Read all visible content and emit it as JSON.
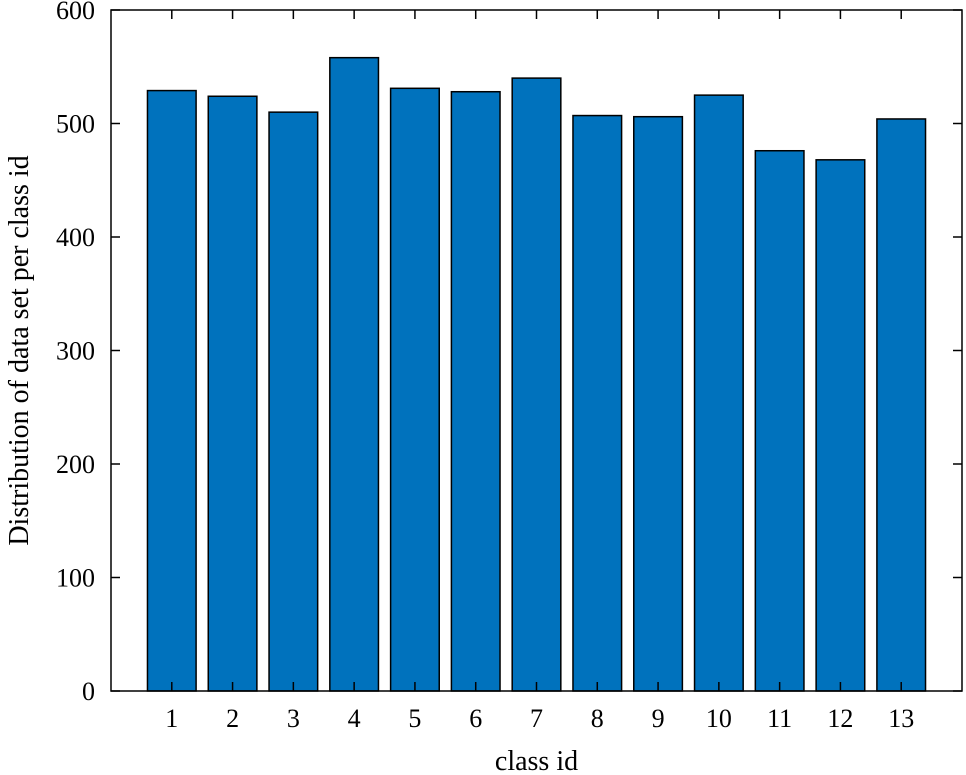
{
  "chart_data": {
    "type": "bar",
    "title": "",
    "xlabel": "class id",
    "ylabel": "Distribution of data set per class id",
    "categories": [
      "1",
      "2",
      "3",
      "4",
      "5",
      "6",
      "7",
      "8",
      "9",
      "10",
      "11",
      "12",
      "13"
    ],
    "values": [
      529,
      524,
      510,
      558,
      531,
      528,
      540,
      507,
      506,
      525,
      476,
      468,
      504
    ],
    "ylim": [
      0,
      600
    ],
    "yticks": [
      0,
      100,
      200,
      300,
      400,
      500,
      600
    ],
    "xlim": [
      0,
      14
    ],
    "grid": false,
    "box": true,
    "bar_color": "#0072BD",
    "bar_edge_color": "#000000"
  }
}
